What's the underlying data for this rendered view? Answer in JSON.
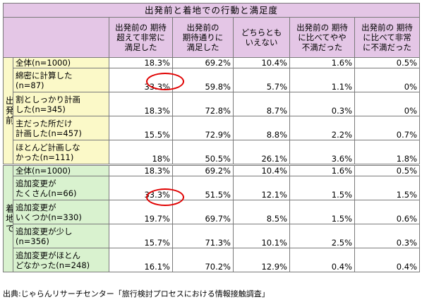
{
  "title": "出発前と着地での行動と満足度",
  "headers": [
    "出発前の期待超えて非常に満足した",
    "出発前の期待通りに満足した",
    "どちらともいえない",
    "出発前の期待に比べてやや不満だった",
    "出発前の期待に比べて非常に不満だった"
  ],
  "header_lines": [
    [
      "出発前の 期待",
      "超えて非常に",
      "満足した"
    ],
    [
      "出発前の",
      "期待通りに",
      "満足した"
    ],
    [
      "どちらとも",
      "いえない"
    ],
    [
      "出発前の 期待",
      "に比べてやや",
      "不満だった"
    ],
    [
      "出発前の 期待",
      "に比べて非常",
      "に不満だった"
    ]
  ],
  "groups": [
    {
      "label": "出発前",
      "rows": [
        {
          "label": "全体(n=1000)",
          "values": [
            "18.3%",
            "69.2%",
            "10.4%",
            "1.6%",
            "0.5%"
          ]
        },
        {
          "label": "綿密に計算した(n=87)",
          "lines": [
            "綿密に計算した",
            "(n=87)"
          ],
          "values": [
            "33.3%",
            "59.8%",
            "5.7%",
            "1.1%",
            "0%"
          ]
        },
        {
          "label": "割としっかり計画した(n=345)",
          "lines": [
            "割としっかり計画",
            "した(n=345)"
          ],
          "values": [
            "18.3%",
            "72.8%",
            "8.7%",
            "0.3%",
            "0%"
          ]
        },
        {
          "label": "主だった所だけ計画した(n=457)",
          "lines": [
            "主だった所だけ",
            "計画した(n=457)"
          ],
          "values": [
            "15.5%",
            "72.9%",
            "8.8%",
            "2.2%",
            "0.7%"
          ]
        },
        {
          "label": "ほとんど計画しなかった(n=111)",
          "lines": [
            "ほとんど計画しな",
            "かった(n=111)"
          ],
          "values": [
            "18%",
            "50.5%",
            "26.1%",
            "3.6%",
            "1.8%"
          ]
        }
      ]
    },
    {
      "label": "着地で",
      "rows": [
        {
          "label": "全体(n=1000)",
          "values": [
            "18.3%",
            "69.2%",
            "10.4%",
            "1.6%",
            "0.5%"
          ]
        },
        {
          "label": "追加変更がたくさん(n=66)",
          "lines": [
            "追加変更が",
            "たくさん(n=66)"
          ],
          "values": [
            "33.3%",
            "51.5%",
            "12.1%",
            "1.5%",
            "1.5%"
          ]
        },
        {
          "label": "追加変更がいくつか(n=330)",
          "lines": [
            "追加変更が",
            "いくつか(n=330)"
          ],
          "values": [
            "19.7%",
            "69.7%",
            "8.5%",
            "1.5%",
            "0.6%"
          ]
        },
        {
          "label": "追加変更が少し(n=356)",
          "lines": [
            "追加変更が少し",
            "(n=356)"
          ],
          "values": [
            "15.7%",
            "71.3%",
            "10.1%",
            "2.5%",
            "0.3%"
          ]
        },
        {
          "label": "追加変更がほとんどなかった(n=248)",
          "lines": [
            "追加変更がほとん",
            "どなかった(n=248)"
          ],
          "values": [
            "16.1%",
            "70.2%",
            "12.9%",
            "0.4%",
            "0.4%"
          ]
        }
      ]
    }
  ],
  "highlight_color": "#e00000",
  "source": "出典:じゃらんリサーチセンター「旅行検討プロセスにおける情報接触調査」"
}
